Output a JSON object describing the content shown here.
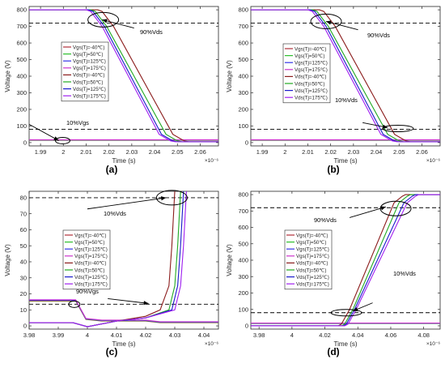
{
  "legend_labels": [
    "Vgs(Tj=-40℃)",
    "Vgs(Tj=50℃)",
    "Vgs(Tj=125℃)",
    "Vgs(Tj=175℃)",
    "Vds(Tj=-40℃)",
    "Vds(Tj=50℃)",
    "Vds(Tj=125℃)",
    "Vds(Tj=175℃)"
  ],
  "series_colors": [
    "#b0303a",
    "#2ebf2e",
    "#3333e6",
    "#cc33cc",
    "#8b1c1c",
    "#22aa22",
    "#1a1acc",
    "#a020f0"
  ],
  "chart_data": [
    {
      "panel_label": "(a)",
      "type": "line",
      "xlabel": "Time (s)",
      "ylabel": "Voltage (V)",
      "x_exponent": "×10⁻⁶",
      "xlim": [
        1.985,
        2.068
      ],
      "ylim": [
        -20,
        820
      ],
      "xticks": [
        1.99,
        2,
        2.01,
        2.02,
        2.03,
        2.04,
        2.05,
        2.06
      ],
      "xtick_labels": [
        "1.99",
        "2",
        "2.01",
        "2.02",
        "2.03",
        "2.04",
        "2.05",
        "2.06"
      ],
      "yticks": [
        0,
        100,
        200,
        300,
        400,
        500,
        600,
        700,
        800
      ],
      "ytick_labels": [
        "0",
        "100",
        "200",
        "300",
        "400",
        "500",
        "600",
        "700",
        "800"
      ],
      "hlines": [
        720,
        80
      ],
      "annotations": [
        "90%Vds",
        "10%Vgs"
      ],
      "ellipses": [
        {
          "cx": 2.0175,
          "cy": 740
        },
        {
          "cx": 1.9997,
          "cy": 12
        }
      ],
      "arrows": [
        {
          "from": [
            2.031,
            690
          ],
          "to": [
            2.017,
            740
          ]
        },
        {
          "from": [
            1.985,
            110
          ],
          "to": [
            1.998,
            12
          ]
        }
      ],
      "series": [
        {
          "name": "Vgs(Tj=-40℃)",
          "x": [
            1.985,
            2.068
          ],
          "y": [
            14,
            14
          ]
        },
        {
          "name": "Vgs(Tj=50℃)",
          "x": [
            1.985,
            2.068
          ],
          "y": [
            15,
            15
          ]
        },
        {
          "name": "Vgs(Tj=125℃)",
          "x": [
            1.985,
            2.068
          ],
          "y": [
            16,
            16
          ]
        },
        {
          "name": "Vgs(Tj=175℃)",
          "x": [
            1.985,
            2.068
          ],
          "y": [
            17,
            17
          ]
        },
        {
          "name": "Vds(Tj=-40℃)",
          "x": [
            1.985,
            2.015,
            2.017,
            2.022,
            2.048,
            2.053,
            2.055,
            2.068
          ],
          "y": [
            800,
            800,
            790,
            700,
            50,
            10,
            5,
            5
          ]
        },
        {
          "name": "Vds(Tj=50℃)",
          "x": [
            1.985,
            2.012,
            2.014,
            2.019,
            2.045,
            2.05,
            2.052,
            2.068
          ],
          "y": [
            800,
            800,
            790,
            700,
            50,
            10,
            5,
            5
          ]
        },
        {
          "name": "Vds(Tj=125℃)",
          "x": [
            1.985,
            2.011,
            2.013,
            2.018,
            2.043,
            2.048,
            2.05,
            2.068
          ],
          "y": [
            800,
            800,
            790,
            700,
            50,
            10,
            5,
            5
          ]
        },
        {
          "name": "Vds(Tj=175℃)",
          "x": [
            1.985,
            2.01,
            2.012,
            2.017,
            2.042,
            2.047,
            2.049,
            2.068
          ],
          "y": [
            800,
            800,
            790,
            700,
            50,
            10,
            5,
            5
          ]
        }
      ]
    },
    {
      "panel_label": "(b)",
      "type": "line",
      "xlabel": "Time (s)",
      "ylabel": "Voltage (V)",
      "x_exponent": "×10⁻⁶",
      "xlim": [
        1.985,
        2.068
      ],
      "ylim": [
        -20,
        820
      ],
      "xticks": [
        1.99,
        2,
        2.01,
        2.02,
        2.03,
        2.04,
        2.05,
        2.06
      ],
      "xtick_labels": [
        "1.99",
        "2",
        "2.01",
        "2.02",
        "2.03",
        "2.04",
        "2.05",
        "2.06"
      ],
      "yticks": [
        0,
        100,
        200,
        300,
        400,
        500,
        600,
        700,
        800
      ],
      "ytick_labels": [
        "0",
        "100",
        "200",
        "300",
        "400",
        "500",
        "600",
        "700",
        "800"
      ],
      "hlines": [
        720,
        80
      ],
      "annotations": [
        "90%Vds",
        "10%Vds"
      ],
      "ellipses": [
        {
          "cx": 2.018,
          "cy": 730
        },
        {
          "cx": 2.0495,
          "cy": 85
        }
      ],
      "arrows": [
        {
          "from": [
            2.032,
            680
          ],
          "to": [
            2.018,
            730
          ]
        },
        {
          "from": [
            2.034,
            120
          ],
          "to": [
            2.045,
            90
          ]
        }
      ],
      "series": [
        {
          "name": "Vgs(Tj=-40℃)",
          "x": [
            1.985,
            2.068
          ],
          "y": [
            14,
            14
          ]
        },
        {
          "name": "Vgs(Tj=50℃)",
          "x": [
            1.985,
            2.068
          ],
          "y": [
            15,
            15
          ]
        },
        {
          "name": "Vgs(Tj=125℃)",
          "x": [
            1.985,
            2.068
          ],
          "y": [
            16,
            16
          ]
        },
        {
          "name": "Vgs(Tj=175℃)",
          "x": [
            1.985,
            2.068
          ],
          "y": [
            17,
            17
          ]
        },
        {
          "name": "Vds(Tj=-40℃)",
          "x": [
            1.985,
            2.015,
            2.017,
            2.022,
            2.048,
            2.053,
            2.055,
            2.068
          ],
          "y": [
            800,
            800,
            790,
            700,
            50,
            10,
            5,
            5
          ]
        },
        {
          "name": "Vds(Tj=50℃)",
          "x": [
            1.985,
            2.012,
            2.014,
            2.019,
            2.045,
            2.05,
            2.052,
            2.068
          ],
          "y": [
            800,
            800,
            790,
            700,
            50,
            10,
            5,
            5
          ]
        },
        {
          "name": "Vds(Tj=125℃)",
          "x": [
            1.985,
            2.011,
            2.013,
            2.018,
            2.043,
            2.048,
            2.05,
            2.068
          ],
          "y": [
            800,
            800,
            790,
            700,
            50,
            10,
            5,
            5
          ]
        },
        {
          "name": "Vds(Tj=175℃)",
          "x": [
            1.985,
            2.01,
            2.012,
            2.017,
            2.042,
            2.047,
            2.049,
            2.068
          ],
          "y": [
            800,
            800,
            790,
            700,
            50,
            10,
            5,
            5
          ]
        }
      ]
    },
    {
      "panel_label": "(c)",
      "type": "line",
      "xlabel": "Time (s)",
      "ylabel": "Voltage (V)",
      "x_exponent": "×10⁻⁶",
      "xlim": [
        3.98,
        4.045
      ],
      "ylim": [
        -2,
        84
      ],
      "xticks": [
        3.98,
        3.99,
        4,
        4.01,
        4.02,
        4.03,
        4.04
      ],
      "xtick_labels": [
        "3.98",
        "3.99",
        "4",
        "4.01",
        "4.02",
        "4.03",
        "4.04"
      ],
      "yticks": [
        0,
        10,
        20,
        30,
        40,
        50,
        60,
        70,
        80
      ],
      "ytick_labels": [
        "0",
        "10",
        "20",
        "30",
        "40",
        "50",
        "60",
        "70",
        "80"
      ],
      "hlines": [
        80,
        13.5
      ],
      "annotations": [
        "10%Vds",
        "90%Vgs"
      ],
      "ellipses": [
        {
          "cx": 4.029,
          "cy": 80
        },
        {
          "cx": 3.9955,
          "cy": 13.5
        }
      ],
      "arrows": [
        {
          "from": [
            4.0,
            73
          ],
          "to": [
            4.027,
            80
          ]
        },
        {
          "from": [
            4.007,
            17
          ],
          "to": [
            4.021,
            14
          ]
        }
      ],
      "series": [
        {
          "name": "Vgs(Tj=-40℃)",
          "x": [
            3.98,
            3.996,
            3.9995,
            4.005,
            4.02,
            4.025,
            4.045
          ],
          "y": [
            15.5,
            15.5,
            4,
            3,
            3,
            2,
            2
          ]
        },
        {
          "name": "Vgs(Tj=50℃)",
          "x": [
            3.98,
            3.996,
            3.9995,
            4.005,
            4.02,
            4.025,
            4.045
          ],
          "y": [
            15.8,
            15.8,
            4.2,
            3.2,
            3.2,
            2.2,
            2.2
          ]
        },
        {
          "name": "Vgs(Tj=125℃)",
          "x": [
            3.98,
            3.996,
            3.9995,
            4.005,
            4.02,
            4.025,
            4.045
          ],
          "y": [
            16,
            16,
            4.4,
            3.4,
            3.4,
            2.4,
            2.4
          ]
        },
        {
          "name": "Vgs(Tj=175℃)",
          "x": [
            3.98,
            3.996,
            3.9995,
            4.005,
            4.02,
            4.025,
            4.045
          ],
          "y": [
            16.3,
            16.3,
            4.6,
            3.6,
            3.6,
            2.6,
            2.6
          ]
        },
        {
          "name": "Vds(Tj=-40℃)",
          "x": [
            3.98,
            3.995,
            4.0,
            4.01,
            4.02,
            4.025,
            4.028,
            4.029,
            4.03
          ],
          "y": [
            2,
            2,
            -0.5,
            3,
            6,
            10,
            25,
            50,
            84
          ]
        },
        {
          "name": "Vds(Tj=50℃)",
          "x": [
            3.98,
            3.995,
            4.0,
            4.01,
            4.02,
            4.028,
            4.03,
            4.031,
            4.032
          ],
          "y": [
            2,
            2,
            -0.5,
            3,
            5,
            10,
            25,
            50,
            84
          ]
        },
        {
          "name": "Vds(Tj=125℃)",
          "x": [
            3.98,
            3.995,
            4.0,
            4.01,
            4.02,
            4.029,
            4.031,
            4.032,
            4.033
          ],
          "y": [
            2,
            2,
            -0.5,
            3,
            5,
            10,
            25,
            50,
            84
          ]
        },
        {
          "name": "Vds(Tj=175℃)",
          "x": [
            3.98,
            3.995,
            4.0,
            4.01,
            4.02,
            4.03,
            4.032,
            4.033,
            4.034
          ],
          "y": [
            2,
            2,
            -0.5,
            3,
            5,
            10,
            25,
            50,
            84
          ]
        }
      ]
    },
    {
      "panel_label": "(d)",
      "type": "line",
      "xlabel": "Time (s)",
      "ylabel": "Voltage (V)",
      "x_exponent": "×10⁻⁶",
      "xlim": [
        3.975,
        4.09
      ],
      "ylim": [
        -20,
        820
      ],
      "xticks": [
        3.98,
        4,
        4.02,
        4.04,
        4.06,
        4.08
      ],
      "xtick_labels": [
        "3.98",
        "4",
        "4.02",
        "4.04",
        "4.06",
        "4.08"
      ],
      "yticks": [
        0,
        100,
        200,
        300,
        400,
        500,
        600,
        700,
        800
      ],
      "ytick_labels": [
        "0",
        "100",
        "200",
        "300",
        "400",
        "500",
        "600",
        "700",
        "800"
      ],
      "hlines": [
        720,
        80
      ],
      "annotations": [
        "90%Vds",
        "10%Vds"
      ],
      "ellipses": [
        {
          "cx": 4.063,
          "cy": 715
        },
        {
          "cx": 4.033,
          "cy": 80
        }
      ],
      "arrows": [
        {
          "from": [
            4.035,
            660
          ],
          "to": [
            4.057,
            725
          ]
        },
        {
          "from": [
            4.049,
            140
          ],
          "to": [
            4.037,
            90
          ]
        }
      ],
      "series": [
        {
          "name": "Vgs(Tj=-40℃)",
          "x": [
            3.975,
            4.09
          ],
          "y": [
            14,
            14
          ]
        },
        {
          "name": "Vgs(Tj=50℃)",
          "x": [
            3.975,
            4.09
          ],
          "y": [
            15,
            15
          ]
        },
        {
          "name": "Vgs(Tj=125℃)",
          "x": [
            3.975,
            4.09
          ],
          "y": [
            16,
            16
          ]
        },
        {
          "name": "Vgs(Tj=175℃)",
          "x": [
            3.975,
            4.09
          ],
          "y": [
            17,
            17
          ]
        },
        {
          "name": "Vds(Tj=-40℃)",
          "x": [
            3.975,
            4.028,
            4.03,
            4.035,
            4.062,
            4.067,
            4.069,
            4.09
          ],
          "y": [
            0,
            0,
            10,
            100,
            750,
            790,
            800,
            800
          ]
        },
        {
          "name": "Vds(Tj=50℃)",
          "x": [
            3.975,
            4.03,
            4.032,
            4.037,
            4.065,
            4.07,
            4.072,
            4.09
          ],
          "y": [
            0,
            0,
            10,
            100,
            750,
            790,
            800,
            800
          ]
        },
        {
          "name": "Vds(Tj=125℃)",
          "x": [
            3.975,
            4.031,
            4.033,
            4.038,
            4.068,
            4.073,
            4.075,
            4.09
          ],
          "y": [
            0,
            0,
            10,
            100,
            750,
            790,
            800,
            800
          ]
        },
        {
          "name": "Vds(Tj=175℃)",
          "x": [
            3.975,
            4.032,
            4.034,
            4.039,
            4.07,
            4.075,
            4.077,
            4.09
          ],
          "y": [
            0,
            0,
            10,
            100,
            750,
            790,
            800,
            800
          ]
        }
      ]
    }
  ]
}
